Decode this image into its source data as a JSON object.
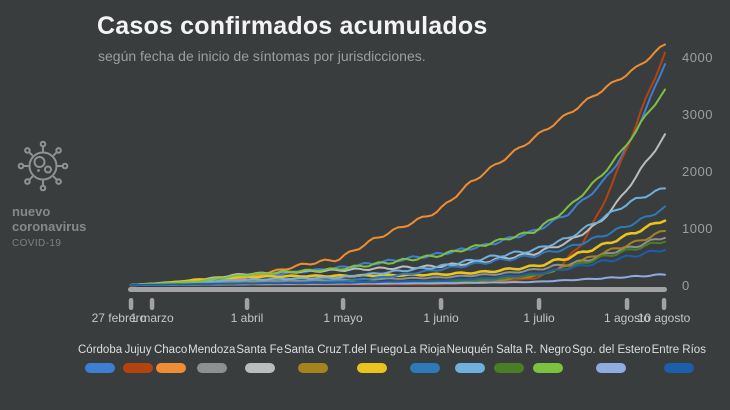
{
  "header": {
    "title": "Casos confirmados acumulados",
    "subtitle": "según fecha de inicio de síntomas por jurisdicciones."
  },
  "branding": {
    "icon": "coronavirus-icon",
    "line1": "nuevo",
    "line2": "coronavirus",
    "line3": "COVID-19"
  },
  "colors": {
    "background": "#3a3d3e",
    "timeline_bar": "#a2a2a2",
    "tick_mark": "#a2a2a2",
    "title_text": "#f4f4f4",
    "subtitle_text": "#9b9fa1",
    "axis_label_text": "#9b9fa1",
    "date_label_text": "#c3c6c7",
    "legend_label_text": "#dcdedf",
    "brand_text": "#85898b"
  },
  "chart_data": {
    "type": "line",
    "title": "Casos confirmados acumulados",
    "subtitle": "según fecha de inicio de síntomas por jurisdicciones.",
    "xlabel": "",
    "ylabel": "",
    "grid": false,
    "legend_position": "bottom",
    "ylim": [
      0,
      4300
    ],
    "y_ticks": [
      0,
      1000,
      2000,
      3000,
      4000
    ],
    "x_range_days": [
      0,
      165
    ],
    "x_ticks": [
      {
        "label": "27 febrero",
        "day": 0
      },
      {
        "label": "1 marzo",
        "day": 3
      },
      {
        "label": "1 abril",
        "day": 34
      },
      {
        "label": "1 mayo",
        "day": 64
      },
      {
        "label": "1 junio",
        "day": 95
      },
      {
        "label": "1 julio",
        "day": 125
      },
      {
        "label": "1 agosto",
        "day": 156
      },
      {
        "label": "10 agosto",
        "day": 165
      }
    ],
    "series": [
      {
        "name": "Córdoba",
        "color": "#3e7fd1",
        "width": 2,
        "points": [
          [
            0,
            0
          ],
          [
            20,
            40
          ],
          [
            34,
            130
          ],
          [
            50,
            220
          ],
          [
            64,
            300
          ],
          [
            80,
            420
          ],
          [
            95,
            540
          ],
          [
            110,
            700
          ],
          [
            125,
            950
          ],
          [
            135,
            1250
          ],
          [
            145,
            1750
          ],
          [
            151,
            2200
          ],
          [
            156,
            2700
          ],
          [
            160,
            3200
          ],
          [
            165,
            3900
          ]
        ]
      },
      {
        "name": "Jujuy",
        "color": "#b5430f",
        "width": 2,
        "points": [
          [
            0,
            0
          ],
          [
            34,
            5
          ],
          [
            64,
            8
          ],
          [
            95,
            15
          ],
          [
            110,
            40
          ],
          [
            125,
            120
          ],
          [
            132,
            300
          ],
          [
            139,
            700
          ],
          [
            145,
            1300
          ],
          [
            151,
            2100
          ],
          [
            156,
            2800
          ],
          [
            160,
            3400
          ],
          [
            165,
            4050
          ]
        ]
      },
      {
        "name": "Chaco",
        "color": "#ef8d33",
        "width": 2,
        "points": [
          [
            0,
            0
          ],
          [
            20,
            30
          ],
          [
            34,
            110
          ],
          [
            45,
            250
          ],
          [
            55,
            380
          ],
          [
            64,
            450
          ],
          [
            75,
            800
          ],
          [
            85,
            1050
          ],
          [
            95,
            1300
          ],
          [
            105,
            1800
          ],
          [
            115,
            2200
          ],
          [
            125,
            2600
          ],
          [
            135,
            3000
          ],
          [
            145,
            3400
          ],
          [
            156,
            3800
          ],
          [
            165,
            4220
          ]
        ]
      },
      {
        "name": "Mendoza",
        "color": "#8d9091",
        "width": 2,
        "points": [
          [
            0,
            0
          ],
          [
            34,
            60
          ],
          [
            64,
            90
          ],
          [
            95,
            130
          ],
          [
            115,
            200
          ],
          [
            125,
            270
          ],
          [
            140,
            420
          ],
          [
            150,
            600
          ],
          [
            156,
            680
          ],
          [
            165,
            850
          ]
        ]
      },
      {
        "name": "Santa Fe",
        "color": "#babdbe",
        "width": 2,
        "points": [
          [
            0,
            0
          ],
          [
            20,
            80
          ],
          [
            34,
            190
          ],
          [
            64,
            260
          ],
          [
            95,
            330
          ],
          [
            110,
            420
          ],
          [
            125,
            560
          ],
          [
            135,
            750
          ],
          [
            145,
            1100
          ],
          [
            151,
            1500
          ],
          [
            156,
            1900
          ],
          [
            165,
            2620
          ]
        ]
      },
      {
        "name": "Santa Cruz",
        "color": "#a5831f",
        "width": 2,
        "points": [
          [
            0,
            0
          ],
          [
            34,
            30
          ],
          [
            64,
            50
          ],
          [
            95,
            60
          ],
          [
            115,
            90
          ],
          [
            125,
            160
          ],
          [
            135,
            330
          ],
          [
            145,
            550
          ],
          [
            156,
            750
          ],
          [
            165,
            950
          ]
        ]
      },
      {
        "name": "T.del Fuego",
        "color": "#eac31c",
        "width": 2.6,
        "points": [
          [
            0,
            0
          ],
          [
            10,
            30
          ],
          [
            20,
            90
          ],
          [
            34,
            140
          ],
          [
            50,
            155
          ],
          [
            64,
            160
          ],
          [
            80,
            170
          ],
          [
            95,
            185
          ],
          [
            110,
            230
          ],
          [
            125,
            330
          ],
          [
            135,
            480
          ],
          [
            145,
            680
          ],
          [
            156,
            930
          ],
          [
            165,
            1150
          ]
        ]
      },
      {
        "name": "La Rioja",
        "color": "#2e79b8",
        "width": 2,
        "points": [
          [
            0,
            0
          ],
          [
            34,
            20
          ],
          [
            50,
            40
          ],
          [
            64,
            60
          ],
          [
            80,
            150
          ],
          [
            95,
            270
          ],
          [
            110,
            400
          ],
          [
            125,
            520
          ],
          [
            135,
            650
          ],
          [
            145,
            850
          ],
          [
            156,
            1100
          ],
          [
            165,
            1350
          ]
        ]
      },
      {
        "name": "Neuquén",
        "color": "#6fb0de",
        "width": 2,
        "points": [
          [
            0,
            0
          ],
          [
            34,
            90
          ],
          [
            64,
            130
          ],
          [
            95,
            320
          ],
          [
            110,
            480
          ],
          [
            125,
            620
          ],
          [
            135,
            820
          ],
          [
            145,
            1150
          ],
          [
            151,
            1350
          ],
          [
            156,
            1500
          ],
          [
            165,
            1700
          ]
        ]
      },
      {
        "name": "Salta",
        "color": "#4a7d26",
        "width": 2,
        "points": [
          [
            0,
            0
          ],
          [
            34,
            10
          ],
          [
            64,
            25
          ],
          [
            95,
            45
          ],
          [
            110,
            90
          ],
          [
            125,
            170
          ],
          [
            135,
            300
          ],
          [
            145,
            480
          ],
          [
            156,
            640
          ],
          [
            165,
            780
          ]
        ]
      },
      {
        "name": "R. Negro",
        "color": "#7dc142",
        "width": 2,
        "points": [
          [
            0,
            0
          ],
          [
            20,
            60
          ],
          [
            34,
            170
          ],
          [
            50,
            240
          ],
          [
            64,
            280
          ],
          [
            80,
            400
          ],
          [
            95,
            520
          ],
          [
            110,
            720
          ],
          [
            125,
            950
          ],
          [
            135,
            1350
          ],
          [
            145,
            1900
          ],
          [
            151,
            2300
          ],
          [
            156,
            2700
          ],
          [
            160,
            3050
          ],
          [
            165,
            3400
          ]
        ]
      },
      {
        "name": "Sgo. del Estero",
        "color": "#8fabdf",
        "width": 2,
        "points": [
          [
            0,
            0
          ],
          [
            34,
            15
          ],
          [
            64,
            22
          ],
          [
            95,
            30
          ],
          [
            125,
            55
          ],
          [
            140,
            100
          ],
          [
            156,
            150
          ],
          [
            165,
            185
          ]
        ]
      },
      {
        "name": "Entre Ríos",
        "color": "#1c5ea9",
        "width": 2,
        "points": [
          [
            0,
            0
          ],
          [
            34,
            25
          ],
          [
            64,
            40
          ],
          [
            95,
            75
          ],
          [
            110,
            120
          ],
          [
            125,
            200
          ],
          [
            135,
            290
          ],
          [
            145,
            400
          ],
          [
            156,
            520
          ],
          [
            165,
            630
          ]
        ]
      }
    ]
  }
}
